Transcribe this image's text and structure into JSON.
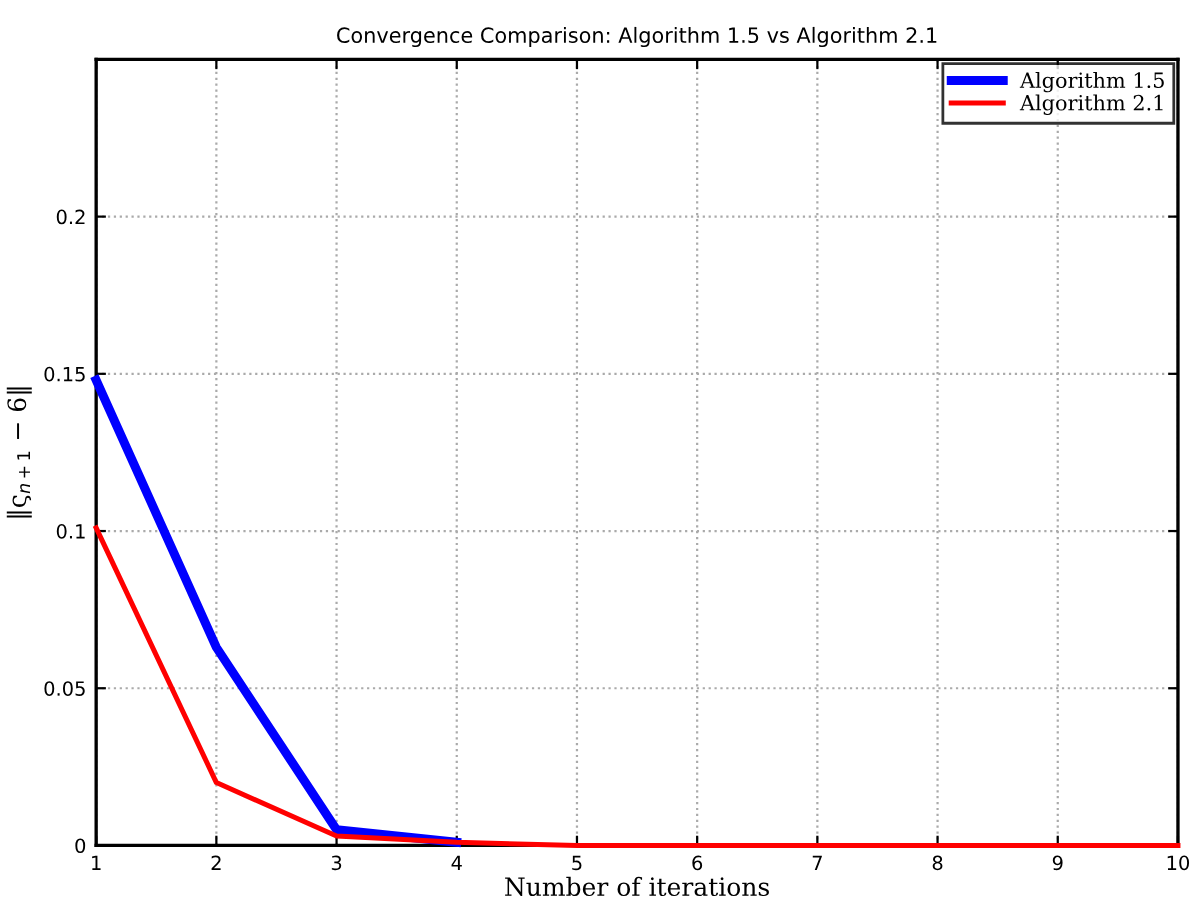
{
  "chart_data": {
    "type": "line",
    "title": "Convergence Comparison: Algorithm 1.5 vs Algorithm 2.1",
    "xlabel": "Number of iterations",
    "ylabel": "‖ς$_{n+1}$ − 6‖",
    "x": [
      1,
      2,
      3,
      4,
      5,
      6,
      7,
      8,
      9,
      10
    ],
    "series": [
      {
        "name": "Algorithm 1.5",
        "color": "#0000ff",
        "values": [
          0.148,
          0.063,
          0.005,
          0.001,
          null,
          null,
          null,
          null,
          null,
          null
        ]
      },
      {
        "name": "Algorithm 2.1",
        "color": "#ff0000",
        "values": [
          0.101,
          0.02,
          0.003,
          0.001,
          0,
          0,
          0,
          0,
          0,
          0
        ]
      }
    ],
    "xlim": [
      1,
      10
    ],
    "ylim": [
      0,
      0.25
    ],
    "xticks": [
      1,
      2,
      3,
      4,
      5,
      6,
      7,
      8,
      9,
      10
    ],
    "yticks": [
      0,
      0.05,
      0.1,
      0.15,
      0.2
    ],
    "grid": true,
    "legend": "top right",
    "line_style": "solid",
    "marker": "none"
  }
}
